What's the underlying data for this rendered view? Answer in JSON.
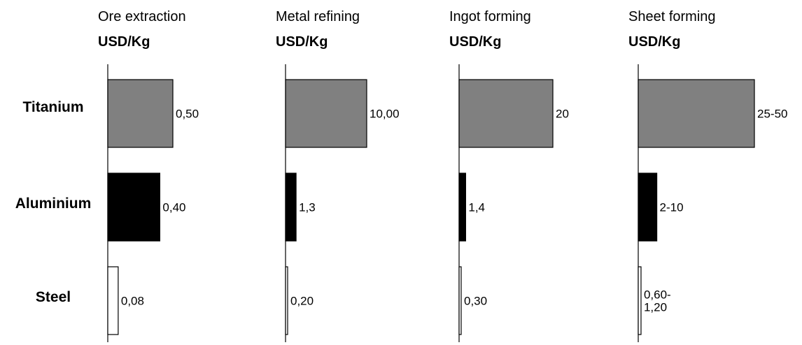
{
  "chart_data": {
    "type": "bar",
    "orientation": "horizontal",
    "categories": [
      "Titanium",
      "Aluminium",
      "Steel"
    ],
    "panels": [
      {
        "title": "Ore extraction",
        "unit": "USD/Kg",
        "values": [
          0.5,
          0.4,
          0.08
        ],
        "labels": [
          "0,50",
          "0,40",
          "0,08"
        ]
      },
      {
        "title": "Metal refining",
        "unit": "USD/Kg",
        "values": [
          10.0,
          1.3,
          0.2
        ],
        "labels": [
          "10,00",
          "1,3",
          "0,20"
        ]
      },
      {
        "title": "Ingot forming",
        "unit": "USD/Kg",
        "values": [
          20,
          1.4,
          0.3
        ],
        "labels": [
          "20",
          "1,4",
          "0,30"
        ]
      },
      {
        "title": "Sheet forming",
        "unit": "USD/Kg",
        "values": [
          37.5,
          6,
          0.9
        ],
        "labels": [
          "25-50",
          "2-10",
          "0,60-\n1,20"
        ]
      }
    ],
    "series_colors": {
      "Titanium": "#808080",
      "Aluminium": "#000000",
      "Steel": "#ffffff"
    },
    "grid": false,
    "legend": "none"
  }
}
